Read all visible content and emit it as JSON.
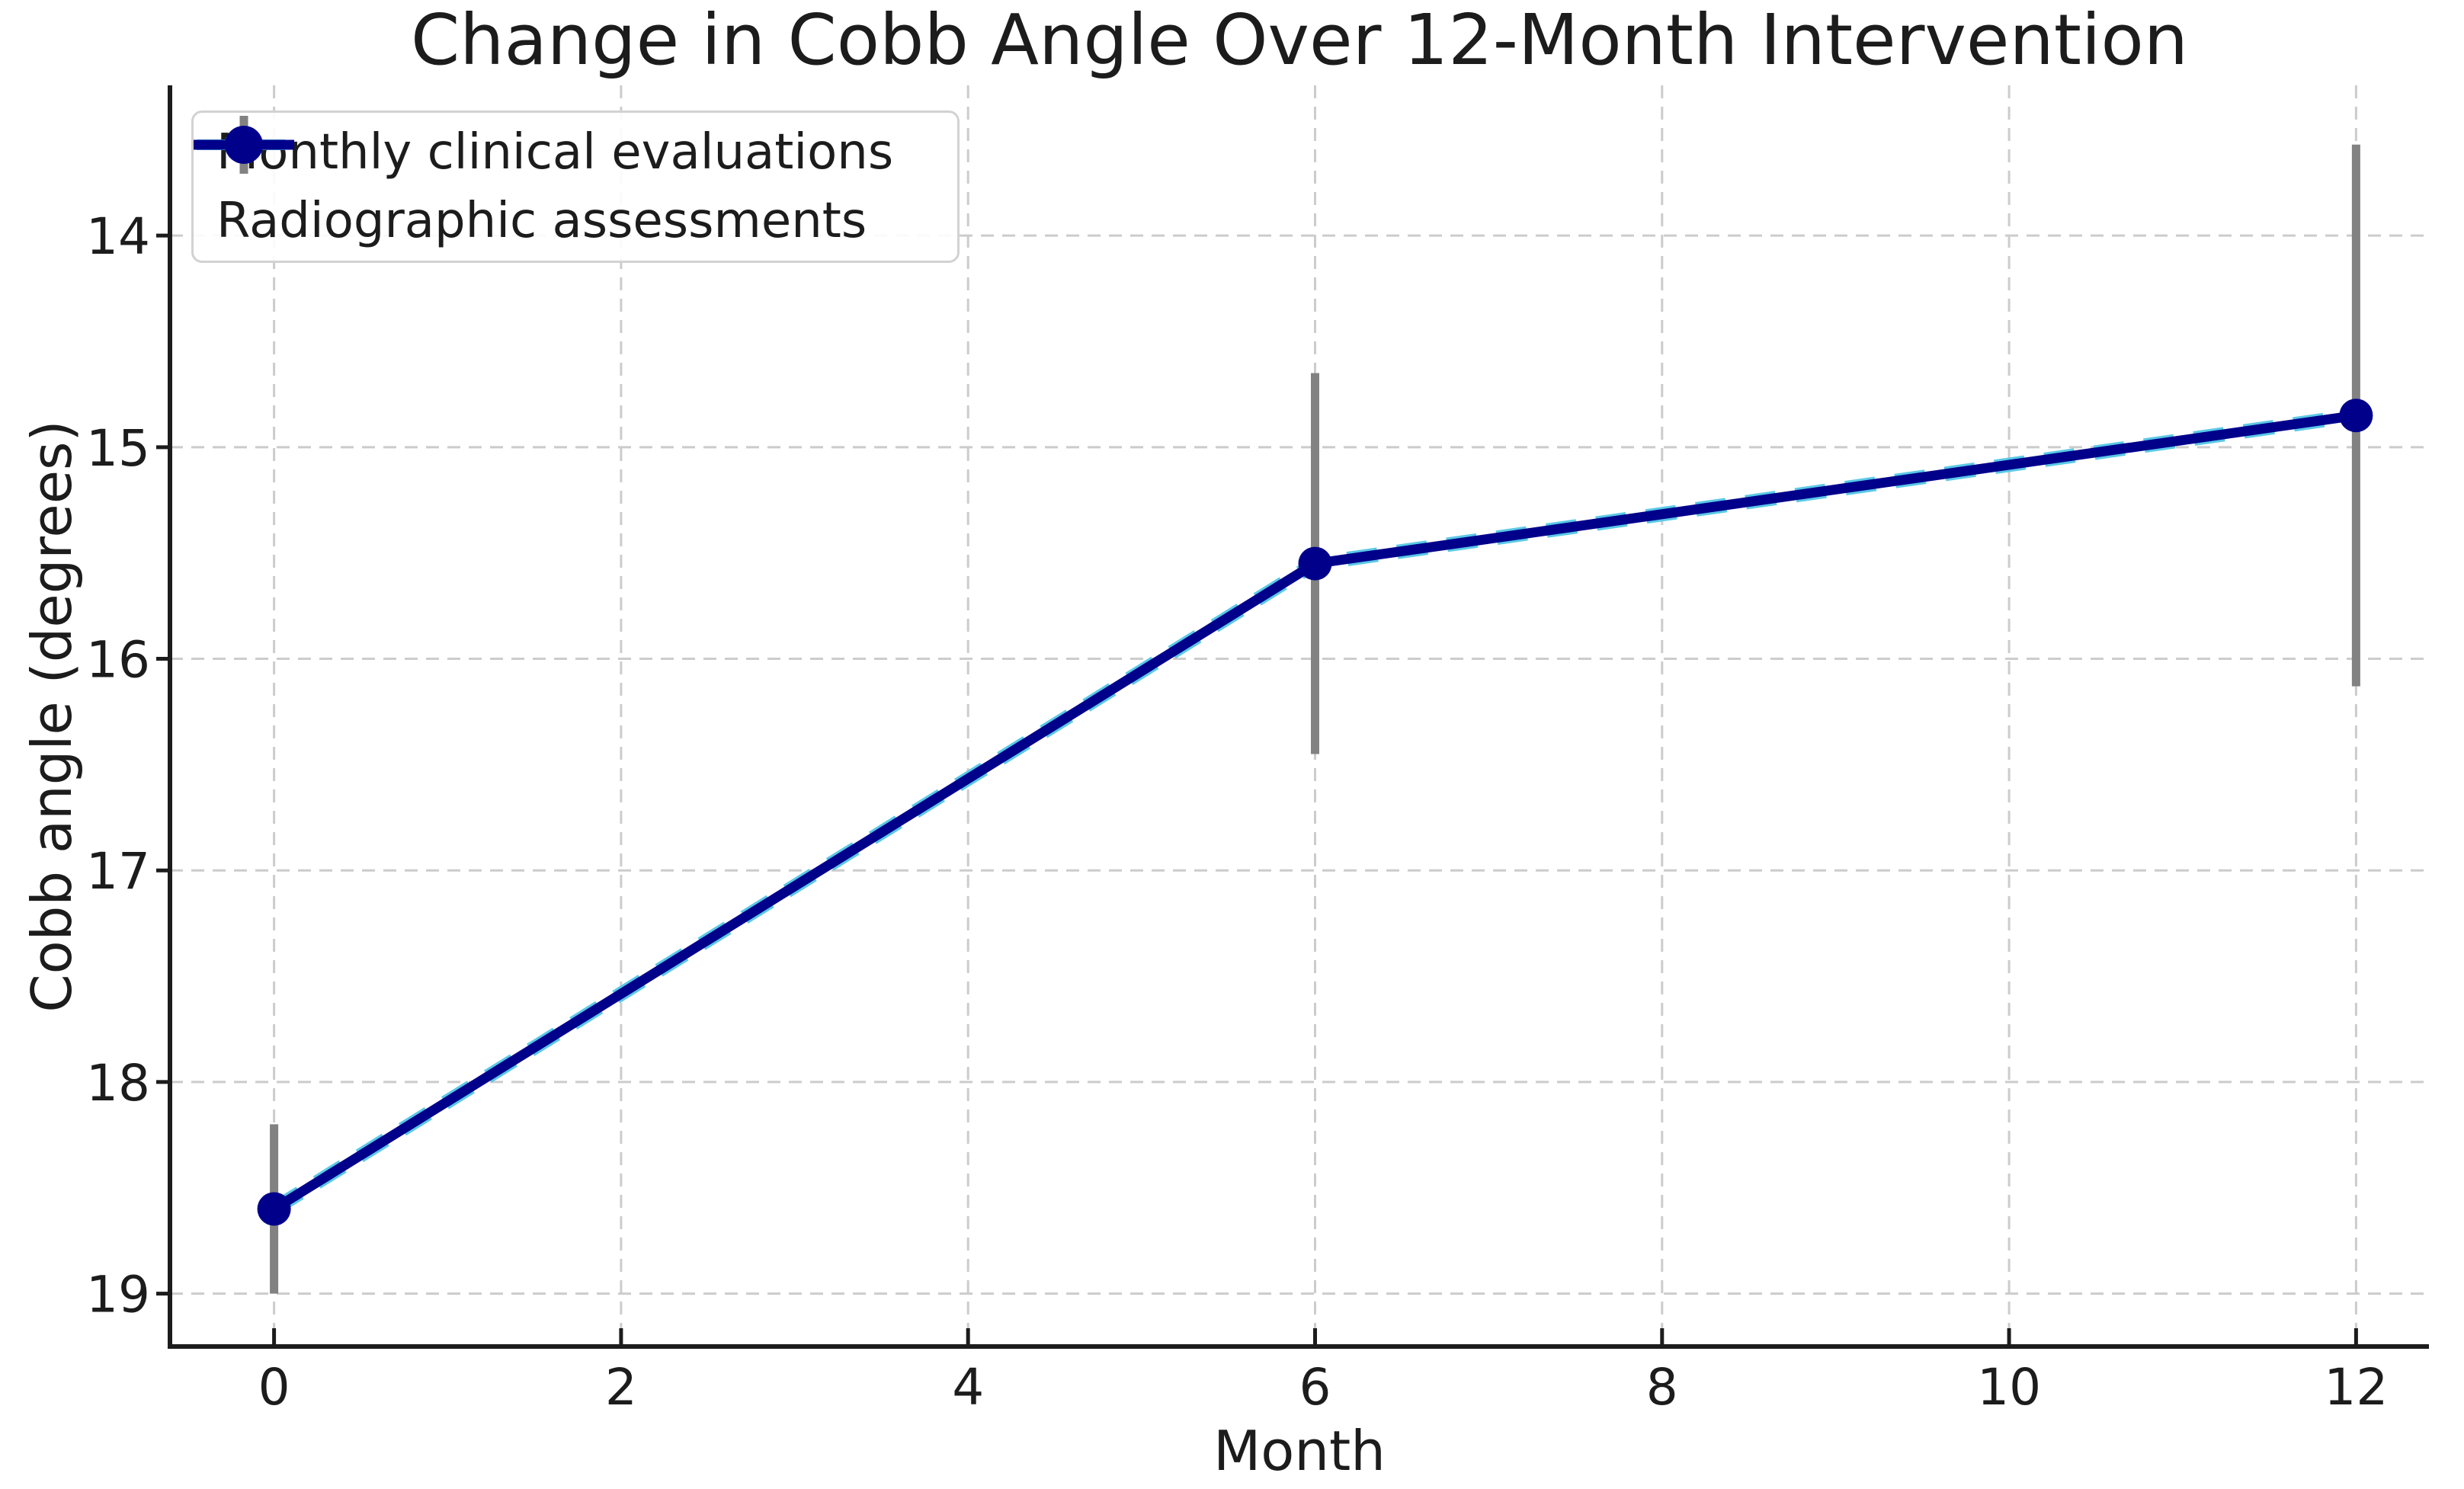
{
  "chart_data": {
    "type": "line",
    "title": "Change in Cobb Angle Over 12-Month Intervention",
    "xlabel": "Month",
    "ylabel": "Cobb angle (degrees)",
    "legend": [
      "Monthly clinical evaluations",
      "Radiographic assessments"
    ],
    "legend_position": "upper left",
    "grid": true,
    "grid_style": "dashed",
    "axes": {
      "x": {
        "min": -0.6,
        "max": 12.42,
        "ticks": [
          0,
          2,
          4,
          6,
          8,
          10,
          12
        ]
      },
      "y": {
        "min": 13.29,
        "max": 19.25,
        "inverted": true,
        "ticks": [
          14,
          15,
          16,
          17,
          18,
          19
        ]
      }
    },
    "series": [
      {
        "name": "Monthly clinical evaluations",
        "style": "dashed",
        "color": "#5bc8e6",
        "x": [
          0,
          6,
          12
        ],
        "y": [
          18.6,
          15.55,
          14.85
        ]
      },
      {
        "name": "Radiographic assessments",
        "style": "solid",
        "marker": "circle",
        "color": "#00008b",
        "errorbar_color": "#828282",
        "x": [
          0,
          6,
          12
        ],
        "y": [
          18.6,
          15.55,
          14.85
        ],
        "yerr": [
          0.4,
          0.9,
          1.28
        ]
      }
    ],
    "colors": {
      "grid": "#cccccc",
      "spine": "#1c1c1c",
      "text": "#1c1c1c",
      "clinical_line": "#5bc8e6",
      "radiographic_line": "#00008b",
      "errorbar": "#828282"
    }
  }
}
